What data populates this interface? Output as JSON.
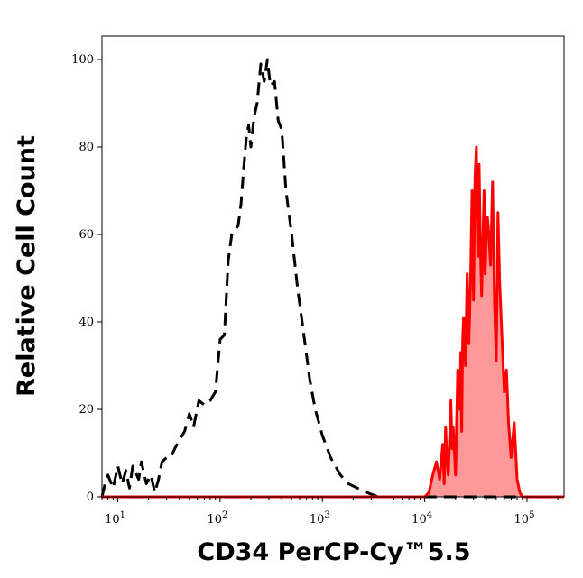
{
  "chart_data": {
    "type": "area",
    "title": "",
    "xlabel": "CD34 PerCP-Cy™5.5",
    "ylabel": "Relative Cell Count",
    "x_scale": "log",
    "xlim": [
      7,
      230000
    ],
    "ylim": [
      0,
      100
    ],
    "grid": false,
    "x_ticks": [
      {
        "value": 10,
        "base": "10",
        "exp": "1"
      },
      {
        "value": 100,
        "base": "10",
        "exp": "2"
      },
      {
        "value": 1000,
        "base": "10",
        "exp": "3"
      },
      {
        "value": 10000,
        "base": "10",
        "exp": "4"
      },
      {
        "value": 100000,
        "base": "10",
        "exp": "5"
      }
    ],
    "y_ticks": [
      0,
      20,
      40,
      60,
      80,
      100
    ],
    "series": [
      {
        "style": "dashed",
        "color": "#000000",
        "fill": "none",
        "points": [
          [
            7,
            0
          ],
          [
            7.5,
            3
          ],
          [
            8,
            5
          ],
          [
            9,
            2
          ],
          [
            10,
            7
          ],
          [
            11,
            3
          ],
          [
            12,
            6
          ],
          [
            13,
            2
          ],
          [
            14,
            7
          ],
          [
            16,
            4
          ],
          [
            17,
            8
          ],
          [
            19,
            3
          ],
          [
            21,
            5
          ],
          [
            23,
            1
          ],
          [
            25,
            4
          ],
          [
            27,
            8
          ],
          [
            30,
            9
          ],
          [
            33,
            9
          ],
          [
            36,
            11
          ],
          [
            40,
            13
          ],
          [
            45,
            15
          ],
          [
            50,
            19
          ],
          [
            55,
            16
          ],
          [
            62,
            22
          ],
          [
            70,
            21
          ],
          [
            80,
            22
          ],
          [
            90,
            24
          ],
          [
            100,
            36
          ],
          [
            110,
            37
          ],
          [
            120,
            54
          ],
          [
            130,
            60
          ],
          [
            150,
            62
          ],
          [
            160,
            67
          ],
          [
            170,
            75
          ],
          [
            180,
            82
          ],
          [
            190,
            85
          ],
          [
            200,
            80
          ],
          [
            215,
            87
          ],
          [
            230,
            90
          ],
          [
            250,
            99
          ],
          [
            270,
            95
          ],
          [
            290,
            100
          ],
          [
            310,
            94
          ],
          [
            340,
            95
          ],
          [
            370,
            86
          ],
          [
            400,
            84
          ],
          [
            440,
            70
          ],
          [
            500,
            60
          ],
          [
            570,
            48
          ],
          [
            650,
            38
          ],
          [
            750,
            27
          ],
          [
            850,
            20
          ],
          [
            1000,
            14
          ],
          [
            1200,
            9
          ],
          [
            1500,
            5
          ],
          [
            1800,
            3
          ],
          [
            2200,
            2
          ],
          [
            2700,
            1
          ],
          [
            3500,
            0
          ],
          [
            230000,
            0
          ]
        ]
      },
      {
        "style": "solid",
        "color": "#ff0000",
        "fill": "#ff9999",
        "points": [
          [
            7,
            0
          ],
          [
            10000,
            0
          ],
          [
            11000,
            1
          ],
          [
            12000,
            5
          ],
          [
            13000,
            8
          ],
          [
            14000,
            4
          ],
          [
            15000,
            12
          ],
          [
            15500,
            3
          ],
          [
            16000,
            16
          ],
          [
            16500,
            8
          ],
          [
            17000,
            5
          ],
          [
            18000,
            22
          ],
          [
            18500,
            11
          ],
          [
            19000,
            16
          ],
          [
            20000,
            5
          ],
          [
            21000,
            29
          ],
          [
            22000,
            20
          ],
          [
            22500,
            33
          ],
          [
            23000,
            15
          ],
          [
            23500,
            36
          ],
          [
            24000,
            41
          ],
          [
            25000,
            30
          ],
          [
            26000,
            51
          ],
          [
            27000,
            35
          ],
          [
            28000,
            48
          ],
          [
            29000,
            70
          ],
          [
            30000,
            45
          ],
          [
            31000,
            73
          ],
          [
            32000,
            80
          ],
          [
            33000,
            55
          ],
          [
            34000,
            76
          ],
          [
            35000,
            57
          ],
          [
            36000,
            46
          ],
          [
            37000,
            58
          ],
          [
            38000,
            70
          ],
          [
            39000,
            51
          ],
          [
            40000,
            60
          ],
          [
            41000,
            64
          ],
          [
            42000,
            61
          ],
          [
            44000,
            53
          ],
          [
            46000,
            72
          ],
          [
            48000,
            45
          ],
          [
            50000,
            31
          ],
          [
            52000,
            65
          ],
          [
            54000,
            49
          ],
          [
            57000,
            36
          ],
          [
            60000,
            24
          ],
          [
            63000,
            29
          ],
          [
            66000,
            17
          ],
          [
            70000,
            9
          ],
          [
            75000,
            17
          ],
          [
            80000,
            4
          ],
          [
            85000,
            1
          ],
          [
            90000,
            0
          ],
          [
            230000,
            0
          ]
        ]
      }
    ]
  }
}
